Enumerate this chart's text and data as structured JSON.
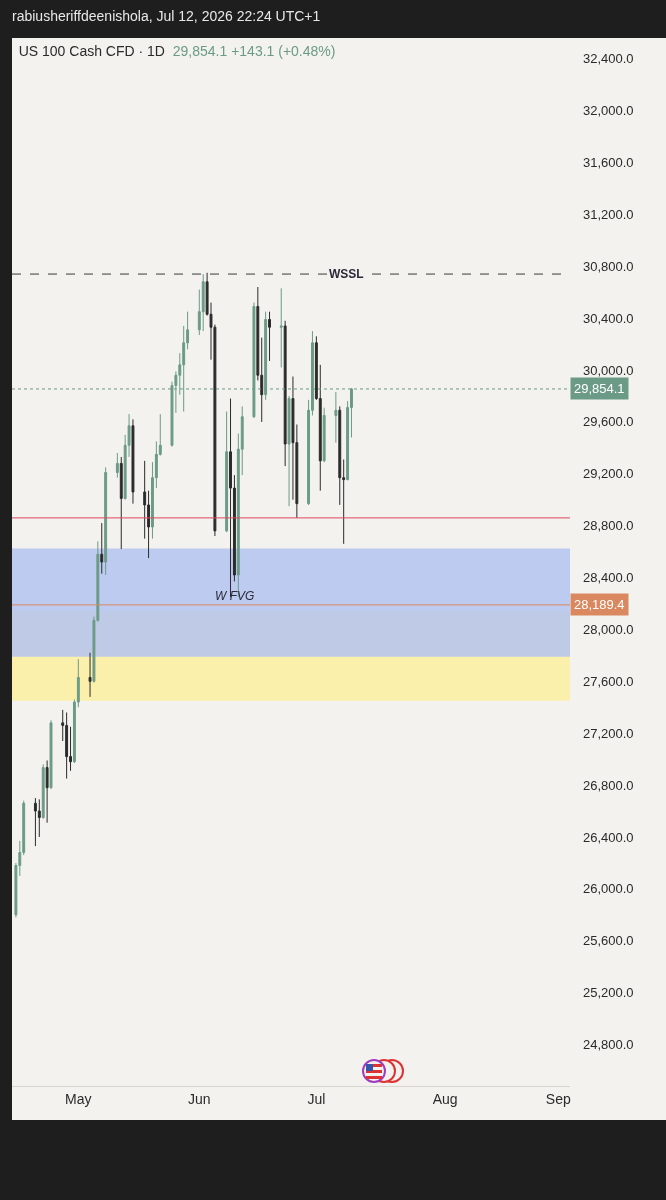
{
  "chart_data": {
    "type": "candlestick",
    "title": "US 100 Cash CFD · 1D",
    "subtitle": "29,854.1 +143.1 (+0.48%)",
    "annotations": [
      "rabiusheriffdeenishola, Jul 12, 2026 22:24 UTC+1",
      {
        "text": "W FVG",
        "x": "2026-06-10",
        "y": 28189.4
      }
    ],
    "x": [
      "2026-04-15",
      "2026-04-16",
      "2026-04-17",
      "2026-04-20",
      "2026-04-21",
      "2026-04-22",
      "2026-04-23",
      "2026-04-24",
      "2026-04-27",
      "2026-04-28",
      "2026-04-29",
      "2026-04-30",
      "2026-05-01",
      "2026-05-04",
      "2026-05-05",
      "2026-05-06",
      "2026-05-07",
      "2026-05-08",
      "2026-05-11",
      "2026-05-12",
      "2026-05-13",
      "2026-05-14",
      "2026-05-15",
      "2026-05-18",
      "2026-05-19",
      "2026-05-20",
      "2026-05-21",
      "2026-05-22",
      "2026-05-25",
      "2026-05-26",
      "2026-05-27",
      "2026-05-28",
      "2026-05-29",
      "2026-06-01",
      "2026-06-02",
      "2026-06-03",
      "2026-06-04",
      "2026-06-05",
      "2026-06-08",
      "2026-06-09",
      "2026-06-10",
      "2026-06-11",
      "2026-06-12",
      "2026-06-15",
      "2026-06-16",
      "2026-06-17",
      "2026-06-18",
      "2026-06-19",
      "2026-06-22",
      "2026-06-23",
      "2026-06-24",
      "2026-06-25",
      "2026-06-26",
      "2026-06-29",
      "2026-06-30",
      "2026-07-01",
      "2026-07-02",
      "2026-07-03",
      "2026-07-06",
      "2026-07-07",
      "2026-07-08",
      "2026-07-09",
      "2026-07-10"
    ],
    "ohlc": [
      [
        25800,
        26200,
        25780,
        26180
      ],
      [
        26180,
        26370,
        26100,
        26280
      ],
      [
        26280,
        26680,
        26260,
        26660
      ],
      [
        26660,
        26700,
        26330,
        26600
      ],
      [
        26600,
        26690,
        26400,
        26550
      ],
      [
        26550,
        26960,
        26540,
        26935
      ],
      [
        26935,
        26990,
        26510,
        26780
      ],
      [
        26780,
        27300,
        26770,
        27280
      ],
      [
        27280,
        27380,
        27140,
        27260
      ],
      [
        27260,
        27360,
        26850,
        27020
      ],
      [
        27020,
        27250,
        26910,
        26980
      ],
      [
        26980,
        27460,
        26970,
        27440
      ],
      [
        27440,
        27770,
        27400,
        27630
      ],
      [
        27630,
        27820,
        27480,
        27600
      ],
      [
        27600,
        28100,
        27590,
        28070
      ],
      [
        28070,
        28680,
        28060,
        28580
      ],
      [
        28580,
        28820,
        28430,
        28520
      ],
      [
        28520,
        29250,
        28420,
        29210
      ],
      [
        29210,
        29360,
        29170,
        29280
      ],
      [
        29280,
        29330,
        28620,
        29010
      ],
      [
        29010,
        29500,
        29000,
        29420
      ],
      [
        29420,
        29660,
        29330,
        29570
      ],
      [
        29570,
        29620,
        28970,
        29060
      ],
      [
        29060,
        29300,
        28700,
        28960
      ],
      [
        28960,
        29070,
        28550,
        28790
      ],
      [
        28790,
        29290,
        28700,
        29170
      ],
      [
        29170,
        29450,
        29090,
        29350
      ],
      [
        29350,
        29660,
        29340,
        29420
      ],
      [
        29420,
        29910,
        29410,
        29880
      ],
      [
        29880,
        29990,
        29670,
        29960
      ],
      [
        29960,
        30130,
        29810,
        30040
      ],
      [
        30040,
        30340,
        29680,
        30210
      ],
      [
        30210,
        30450,
        30160,
        30310
      ],
      [
        30310,
        30620,
        30270,
        30450
      ],
      [
        30450,
        30740,
        30300,
        30680
      ],
      [
        30680,
        30750,
        30420,
        30430
      ],
      [
        30430,
        30520,
        30080,
        30330
      ],
      [
        30330,
        30350,
        28720,
        28760
      ],
      [
        28760,
        29680,
        28750,
        29370
      ],
      [
        29370,
        29780,
        28250,
        29090
      ],
      [
        29090,
        29190,
        28370,
        28420
      ],
      [
        28420,
        29510,
        28250,
        29390
      ],
      [
        29390,
        29720,
        29190,
        29640
      ],
      [
        29640,
        30520,
        29630,
        30490
      ],
      [
        30490,
        30640,
        29920,
        29960
      ],
      [
        29960,
        30250,
        29600,
        29810
      ],
      [
        29810,
        30450,
        29770,
        30390
      ],
      [
        30390,
        30450,
        30070,
        30330
      ],
      [
        30330,
        30630,
        30020,
        30340
      ],
      [
        30340,
        30380,
        29260,
        29430
      ],
      [
        29430,
        29800,
        28950,
        29780
      ],
      [
        29780,
        29950,
        29000,
        29440
      ],
      [
        29440,
        29580,
        28860,
        28970
      ],
      [
        28970,
        29770,
        28960,
        29690
      ],
      [
        29690,
        30300,
        29650,
        30210
      ],
      [
        30210,
        30260,
        29770,
        29780
      ],
      [
        29780,
        30040,
        29070,
        29300
      ],
      [
        29300,
        29710,
        29290,
        29650
      ],
      [
        29650,
        29830,
        29440,
        29690
      ],
      [
        29690,
        29720,
        28960,
        29170
      ],
      [
        29170,
        29310,
        28660,
        29155
      ],
      [
        29155,
        29760,
        29150,
        29711
      ],
      [
        29711,
        29860,
        29480,
        29854.1
      ]
    ],
    "colors": [
      "#6b9b86",
      "#6b9b86",
      "#6b9b86",
      "#2b2b2b",
      "#2b2b2b",
      "#6b9b86",
      "#2b2b2b",
      "#6b9b86",
      "#2b2b2b",
      "#2b2b2b",
      "#2b2b2b",
      "#6b9b86",
      "#6b9b86",
      "#2b2b2b",
      "#6b9b86",
      "#6b9b86",
      "#2b2b2b",
      "#6b9b86",
      "#6b9b86",
      "#2b2b2b",
      "#6b9b86",
      "#6b9b86",
      "#2b2b2b",
      "#2b2b2b",
      "#2b2b2b",
      "#6b9b86",
      "#6b9b86",
      "#6b9b86",
      "#6b9b86",
      "#6b9b86",
      "#6b9b86",
      "#6b9b86",
      "#6b9b86",
      "#6b9b86",
      "#6b9b86",
      "#2b2b2b",
      "#2b2b2b",
      "#2b2b2b",
      "#6b9b86",
      "#2b2b2b",
      "#2b2b2b",
      "#6b9b86",
      "#6b9b86",
      "#6b9b86",
      "#2b2b2b",
      "#2b2b2b",
      "#6b9b86",
      "#2b2b2b",
      "#6b9b86",
      "#2b2b2b",
      "#6b9b86",
      "#2b2b2b",
      "#2b2b2b",
      "#6b9b86",
      "#6b9b86",
      "#2b2b2b",
      "#2b2b2b",
      "#6b9b86",
      "#6b9b86",
      "#2b2b2b",
      "#2b2b2b",
      "#6b9b86",
      "#6b9b86"
    ],
    "xlim": [
      "2026-04-14",
      "2026-09-04"
    ],
    "xticks": [
      {
        "value": "2026-05-01",
        "label": "May"
      },
      {
        "value": "2026-06-01",
        "label": "Jun"
      },
      {
        "value": "2026-07-01",
        "label": "Jul"
      },
      {
        "value": "2026-08-03",
        "label": "Aug"
      },
      {
        "value": "2026-09-01",
        "label": "Sep"
      }
    ],
    "ylim": [
      24480,
      32560
    ],
    "yticks": [
      {
        "value": 24800,
        "label": "24,800.0"
      },
      {
        "value": 25200,
        "label": "25,200.0"
      },
      {
        "value": 25600,
        "label": "25,600.0"
      },
      {
        "value": 26000,
        "label": "26,000.0"
      },
      {
        "value": 26400,
        "label": "26,400.0"
      },
      {
        "value": 26800,
        "label": "26,800.0"
      },
      {
        "value": 27200,
        "label": "27,200.0"
      },
      {
        "value": 27600,
        "label": "27,600.0"
      },
      {
        "value": 28000,
        "label": "28,000.0"
      },
      {
        "value": 28400,
        "label": "28,400.0"
      },
      {
        "value": 28800,
        "label": "28,800.0"
      },
      {
        "value": 29200,
        "label": "29,200.0"
      },
      {
        "value": 29600,
        "label": "29,600.0"
      },
      {
        "value": 30000,
        "label": "30,000.0"
      },
      {
        "value": 30400,
        "label": "30,400.0"
      },
      {
        "value": 30800,
        "label": "30,800.0"
      },
      {
        "value": 31200,
        "label": "31,200.0"
      },
      {
        "value": 31600,
        "label": "31,600.0"
      },
      {
        "value": 32000,
        "label": "32,000.0"
      },
      {
        "value": 32400,
        "label": "32,400.0"
      }
    ],
    "ref_lines": [
      {
        "axis": "y",
        "value": 30740,
        "label": "WSSL",
        "color": "#3a3a3a",
        "line_style": "dashed"
      },
      {
        "axis": "y",
        "value": 29854.1,
        "label": "29,854.1",
        "color": "#6b9b86",
        "line_style": "dotted"
      },
      {
        "axis": "y",
        "value": 28189.4,
        "label": "28,189.4",
        "color": "#d9885f",
        "line_style": "solid"
      },
      {
        "axis": "y",
        "value": 28860,
        "color": "#e0455f",
        "line_style": "solid"
      }
    ],
    "bands": [
      {
        "axis": "y",
        "from": 27450,
        "to": 28140,
        "color": "#fbeea0"
      },
      {
        "axis": "y",
        "from": 27790,
        "to": 28625,
        "color": "#b4c4f0"
      }
    ]
  }
}
